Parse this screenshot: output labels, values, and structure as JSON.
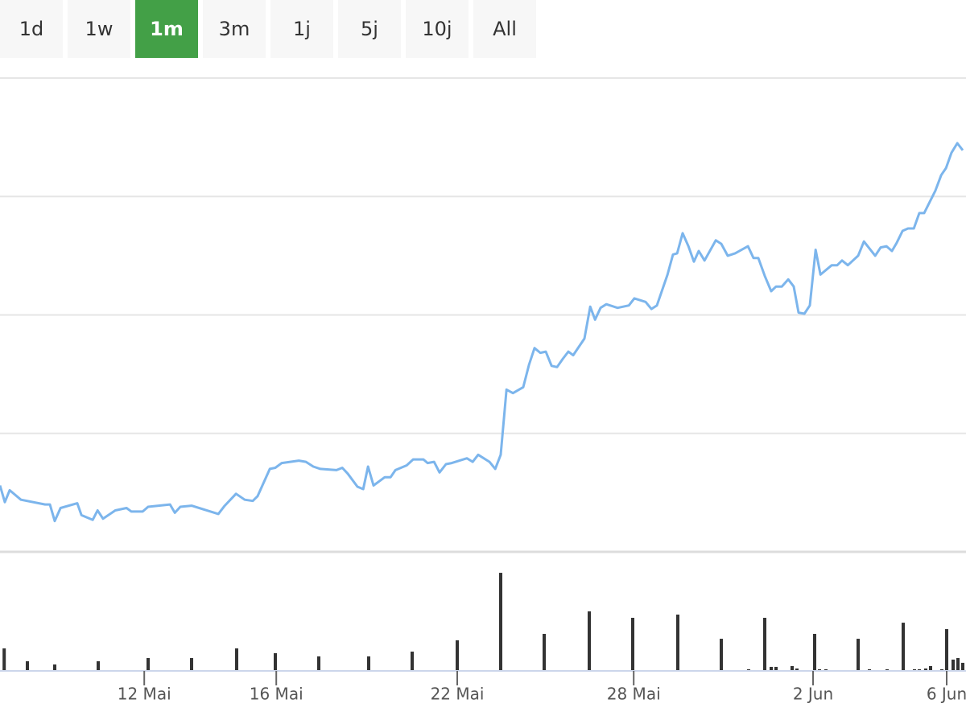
{
  "range_selector": {
    "buttons": [
      "1d",
      "1w",
      "1m",
      "3m",
      "1j",
      "5j",
      "10j",
      "All"
    ],
    "active_index": 2
  },
  "chart_data": [
    {
      "type": "line",
      "color": "#7cb5ec",
      "xlim": [
        0,
        30
      ],
      "ylim": [
        0,
        40
      ],
      "yticks": [
        10,
        20,
        30,
        40
      ],
      "grid": true,
      "x": [
        0,
        0.15,
        0.3,
        0.65,
        1.4,
        1.55,
        1.7,
        1.88,
        2.4,
        2.53,
        2.88,
        3.03,
        3.2,
        3.58,
        3.93,
        4.08,
        4.43,
        4.6,
        5.28,
        5.43,
        5.6,
        5.95,
        6.78,
        6.98,
        7.33,
        7.6,
        7.85,
        8.0,
        8.38,
        8.55,
        8.75,
        9.28,
        9.5,
        9.73,
        9.95,
        10.45,
        10.63,
        10.8,
        11.1,
        11.28,
        11.43,
        11.6,
        11.95,
        12.13,
        12.28,
        12.63,
        12.83,
        13.15,
        13.28,
        13.48,
        13.65,
        13.85,
        14.03,
        14.5,
        14.68,
        14.85,
        15.2,
        15.38,
        15.55,
        15.73,
        15.93,
        16.25,
        16.43,
        16.6,
        16.78,
        16.95,
        17.13,
        17.3,
        17.48,
        17.65,
        17.8,
        18.15,
        18.33,
        18.48,
        18.65,
        18.83,
        19.18,
        19.53,
        19.7,
        20.05,
        20.23,
        20.4,
        20.73,
        20.9,
        21.03,
        21.2,
        21.38,
        21.55,
        21.7,
        21.88,
        22.23,
        22.4,
        22.6,
        22.83,
        23.23,
        23.4,
        23.55,
        23.75,
        23.95,
        24.1,
        24.28,
        24.48,
        24.65,
        24.8,
        24.98,
        25.15,
        25.33,
        25.48,
        25.83,
        26.0,
        26.15,
        26.33,
        26.65,
        26.83,
        27.18,
        27.35,
        27.53,
        27.7,
        27.85,
        28.03,
        28.2,
        28.38,
        28.55,
        28.7,
        29.05,
        29.23,
        29.38,
        29.55,
        29.73,
        29.9
      ],
      "values": [
        5.6,
        4.2,
        5.2,
        4.4,
        4.0,
        4.0,
        2.6,
        3.7,
        4.1,
        3.1,
        2.7,
        3.5,
        2.8,
        3.5,
        3.7,
        3.4,
        3.4,
        3.8,
        4.0,
        3.3,
        3.8,
        3.9,
        3.2,
        3.9,
        4.9,
        4.4,
        4.3,
        4.7,
        7.0,
        7.1,
        7.5,
        7.7,
        7.6,
        7.2,
        7.0,
        6.9,
        7.1,
        6.6,
        5.5,
        5.3,
        7.2,
        5.6,
        6.3,
        6.3,
        6.9,
        7.3,
        7.8,
        7.8,
        7.5,
        7.6,
        6.7,
        7.4,
        7.5,
        7.9,
        7.6,
        8.2,
        7.6,
        7.0,
        8.2,
        13.7,
        13.4,
        13.9,
        15.8,
        17.2,
        16.8,
        16.9,
        15.7,
        15.6,
        16.3,
        16.9,
        16.6,
        18.0,
        20.7,
        19.6,
        20.6,
        20.9,
        20.6,
        20.8,
        21.4,
        21.1,
        20.5,
        20.8,
        23.4,
        25.1,
        25.2,
        26.9,
        25.8,
        24.5,
        25.4,
        24.6,
        26.3,
        26.0,
        25.0,
        25.2,
        25.8,
        24.8,
        24.8,
        23.3,
        22.0,
        22.4,
        22.4,
        23.0,
        22.4,
        20.2,
        20.1,
        20.8,
        25.5,
        23.4,
        24.2,
        24.2,
        24.6,
        24.2,
        25.0,
        26.2,
        25.0,
        25.7,
        25.8,
        25.4,
        26.1,
        27.1,
        27.3,
        27.3,
        28.6,
        28.6,
        30.5,
        31.8,
        32.4,
        33.7,
        34.5,
        33.9
      ]
    },
    {
      "type": "bar",
      "color": "#333333",
      "xlim": [
        0,
        30
      ],
      "ylim": [
        0,
        100
      ],
      "xticks": [
        {
          "value": 4.48,
          "label": "12 Mai"
        },
        {
          "value": 8.58,
          "label": "16 Mai"
        },
        {
          "value": 14.2,
          "label": "22 Mai"
        },
        {
          "value": 19.68,
          "label": "28 Mai"
        },
        {
          "value": 25.25,
          "label": "2 Jun"
        },
        {
          "value": 29.4,
          "label": "6 Jun"
        }
      ],
      "x": [
        0.13,
        0.85,
        1.7,
        3.05,
        4.6,
        5.95,
        7.35,
        8.55,
        9.9,
        11.45,
        12.8,
        14.2,
        15.55,
        16.9,
        18.3,
        19.65,
        21.05,
        22.4,
        23.25,
        23.75,
        23.95,
        24.1,
        24.6,
        24.75,
        25.3,
        25.45,
        25.65,
        26.65,
        27.0,
        27.55,
        28.05,
        28.4,
        28.55,
        28.75,
        28.9,
        29.25,
        29.4,
        29.6,
        29.75,
        29.9
      ],
      "values": [
        18.9,
        8.1,
        5.4,
        8.1,
        10.8,
        10.8,
        18.9,
        14.9,
        12.2,
        12.2,
        16.2,
        25.7,
        82.4,
        31.1,
        50.0,
        44.6,
        47.3,
        27.0,
        1.4,
        44.6,
        3.4,
        3.4,
        4.1,
        2.0,
        31.1,
        1.4,
        1.4,
        27.0,
        1.4,
        1.4,
        40.5,
        1.4,
        1.4,
        2.0,
        4.1,
        1.4,
        35.1,
        9.5,
        10.8,
        6.8
      ]
    }
  ]
}
